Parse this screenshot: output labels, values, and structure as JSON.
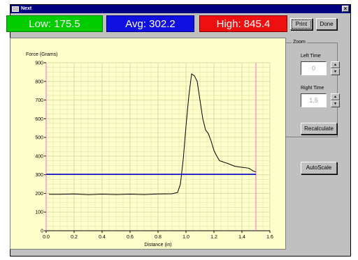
{
  "window": {
    "title": "Next"
  },
  "stats": {
    "low": "Low: 175.5",
    "avg": "Avg: 302.2",
    "high": "High: 845.4",
    "colors": {
      "low": "#00cc00",
      "avg": "#1010e0",
      "high": "#ee1010"
    }
  },
  "buttons": {
    "print": "Print",
    "done": "Done",
    "recalculate": "Recalculate",
    "autoscale": "AutoScale"
  },
  "zoom": {
    "label": "Zoom",
    "left_time_label": "Left Time",
    "left_time_value": "0",
    "right_time_label": "Right Time",
    "right_time_value": "1.5"
  },
  "chart_data": {
    "type": "line",
    "ylabel": "Force (Grams)",
    "xlabel": "Distance (in)",
    "xlim": [
      0.0,
      1.6
    ],
    "ylim": [
      0,
      900
    ],
    "x_ticks": [
      "0.0",
      "0.2",
      "0.4",
      "0.6",
      "0.8",
      "1.0",
      "1.2",
      "1.4",
      "1.6"
    ],
    "y_ticks": [
      "0",
      "100",
      "200",
      "300",
      "400",
      "500",
      "600",
      "700",
      "800",
      "900"
    ],
    "grid": true,
    "series": [
      {
        "color": "#000000",
        "x": [
          0.02,
          0.1,
          0.2,
          0.3,
          0.4,
          0.5,
          0.6,
          0.7,
          0.8,
          0.9,
          0.94,
          0.96,
          0.98,
          1.0,
          1.02,
          1.04,
          1.06,
          1.08,
          1.1,
          1.12,
          1.14,
          1.16,
          1.18,
          1.2,
          1.22,
          1.24,
          1.26,
          1.28,
          1.3,
          1.35,
          1.4,
          1.45,
          1.48,
          1.5
        ],
        "y": [
          195,
          195,
          197,
          193,
          196,
          194,
          196,
          194,
          197,
          198,
          205,
          250,
          380,
          560,
          720,
          840,
          830,
          800,
          700,
          600,
          540,
          520,
          480,
          430,
          400,
          375,
          370,
          365,
          360,
          345,
          340,
          335,
          320,
          315
        ]
      },
      {
        "color": "#0000cc",
        "x": [
          0.0,
          1.5
        ],
        "y": [
          302.2,
          302.2
        ]
      }
    ],
    "markers": {
      "color": "#ff66cc",
      "x": [
        0.0,
        1.5
      ]
    }
  }
}
